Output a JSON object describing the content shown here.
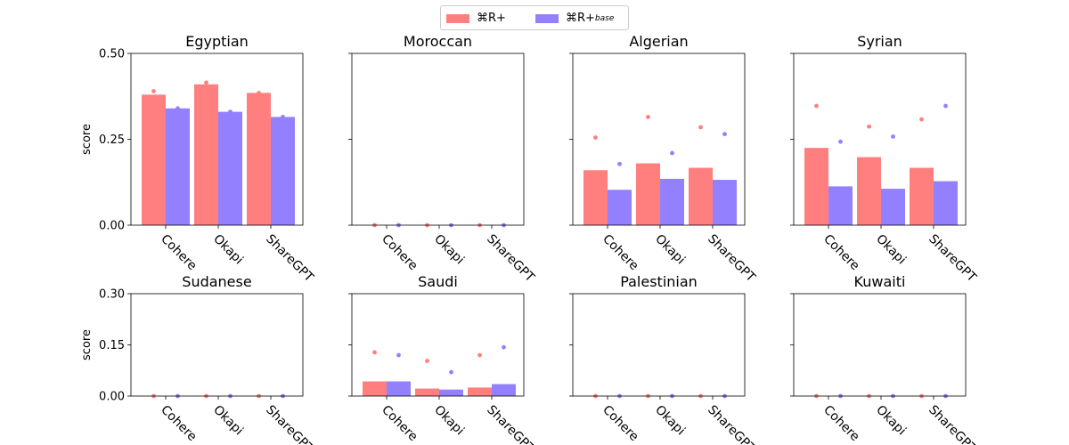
{
  "colors": {
    "primary": "#ff7f7f",
    "base": "#9380ff"
  },
  "legend": {
    "items": [
      {
        "label": "⌘R+",
        "color_key": "primary"
      },
      {
        "label": "⌘R+",
        "subscript": "base",
        "color_key": "base"
      }
    ]
  },
  "chart_data": [
    {
      "type": "bar",
      "title": "Egyptian",
      "ylabel": "score",
      "ylim": [
        0,
        0.5
      ],
      "yticks": [
        "0.00",
        "0.25",
        "0.50"
      ],
      "ytick_values": [
        0,
        0.25,
        0.5
      ],
      "categories": [
        "Cohere",
        "Okapi",
        "ShareGPT"
      ],
      "series": [
        {
          "name": "⌘R+",
          "values": [
            0.38,
            0.41,
            0.385
          ],
          "points": [
            0.39,
            0.415,
            0.385
          ]
        },
        {
          "name": "⌘R+base",
          "values": [
            0.34,
            0.33,
            0.315
          ],
          "points": [
            0.34,
            0.33,
            0.315
          ]
        }
      ]
    },
    {
      "type": "bar",
      "title": "Moroccan",
      "ylabel": "",
      "ylim": [
        0,
        0.5
      ],
      "yticks": [],
      "ytick_values": [
        0,
        0.25,
        0.5
      ],
      "categories": [
        "Cohere",
        "Okapi",
        "ShareGPT"
      ],
      "series": [
        {
          "name": "⌘R+",
          "values": [
            0,
            0,
            0
          ],
          "points": [
            0,
            0,
            0
          ]
        },
        {
          "name": "⌘R+base",
          "values": [
            0,
            0,
            0
          ],
          "points": [
            0,
            0,
            0
          ]
        }
      ]
    },
    {
      "type": "bar",
      "title": "Algerian",
      "ylabel": "",
      "ylim": [
        0,
        0.5
      ],
      "yticks": [],
      "ytick_values": [
        0,
        0.25,
        0.5
      ],
      "categories": [
        "Cohere",
        "Okapi",
        "ShareGPT"
      ],
      "series": [
        {
          "name": "⌘R+",
          "values": [
            0.16,
            0.18,
            0.167
          ],
          "points": [
            0.255,
            0.315,
            0.285
          ]
        },
        {
          "name": "⌘R+base",
          "values": [
            0.103,
            0.135,
            0.132
          ],
          "points": [
            0.178,
            0.21,
            0.265
          ]
        }
      ]
    },
    {
      "type": "bar",
      "title": "Syrian",
      "ylabel": "",
      "ylim": [
        0,
        0.5
      ],
      "yticks": [],
      "ytick_values": [
        0,
        0.25,
        0.5
      ],
      "categories": [
        "Cohere",
        "Okapi",
        "ShareGPT"
      ],
      "series": [
        {
          "name": "⌘R+",
          "values": [
            0.225,
            0.198,
            0.167
          ],
          "points": [
            0.347,
            0.287,
            0.308
          ]
        },
        {
          "name": "⌘R+base",
          "values": [
            0.113,
            0.106,
            0.128
          ],
          "points": [
            0.243,
            0.258,
            0.347
          ]
        }
      ]
    },
    {
      "type": "bar",
      "title": "Sudanese",
      "ylabel": "score",
      "ylim": [
        0,
        0.3
      ],
      "yticks": [
        "0.00",
        "0.15",
        "0.30"
      ],
      "ytick_values": [
        0,
        0.15,
        0.3
      ],
      "categories": [
        "Cohere",
        "Okapi",
        "ShareGPT"
      ],
      "series": [
        {
          "name": "⌘R+",
          "values": [
            0,
            0,
            0
          ],
          "points": [
            0,
            0,
            0
          ]
        },
        {
          "name": "⌘R+base",
          "values": [
            0,
            0,
            0
          ],
          "points": [
            0,
            0,
            0
          ]
        }
      ]
    },
    {
      "type": "bar",
      "title": "Saudi",
      "ylabel": "",
      "ylim": [
        0,
        0.3
      ],
      "yticks": [],
      "ytick_values": [
        0,
        0.15,
        0.3
      ],
      "categories": [
        "Cohere",
        "Okapi",
        "ShareGPT"
      ],
      "series": [
        {
          "name": "⌘R+",
          "values": [
            0.043,
            0.022,
            0.025
          ],
          "points": [
            0.128,
            0.103,
            0.12
          ]
        },
        {
          "name": "⌘R+base",
          "values": [
            0.043,
            0.019,
            0.035
          ],
          "points": [
            0.12,
            0.07,
            0.143
          ]
        }
      ]
    },
    {
      "type": "bar",
      "title": "Palestinian",
      "ylabel": "",
      "ylim": [
        0,
        0.3
      ],
      "yticks": [],
      "ytick_values": [
        0,
        0.15,
        0.3
      ],
      "categories": [
        "Cohere",
        "Okapi",
        "ShareGPT"
      ],
      "series": [
        {
          "name": "⌘R+",
          "values": [
            0,
            0,
            0
          ],
          "points": [
            0,
            0,
            0
          ]
        },
        {
          "name": "⌘R+base",
          "values": [
            0,
            0,
            0
          ],
          "points": [
            0,
            0,
            0
          ]
        }
      ]
    },
    {
      "type": "bar",
      "title": "Kuwaiti",
      "ylabel": "",
      "ylim": [
        0,
        0.3
      ],
      "yticks": [],
      "ytick_values": [
        0,
        0.15,
        0.3
      ],
      "categories": [
        "Cohere",
        "Okapi",
        "ShareGPT"
      ],
      "series": [
        {
          "name": "⌘R+",
          "values": [
            0,
            0,
            0
          ],
          "points": [
            0,
            0,
            0
          ]
        },
        {
          "name": "⌘R+base",
          "values": [
            0,
            0,
            0
          ],
          "points": [
            0,
            0,
            0
          ]
        }
      ]
    }
  ]
}
